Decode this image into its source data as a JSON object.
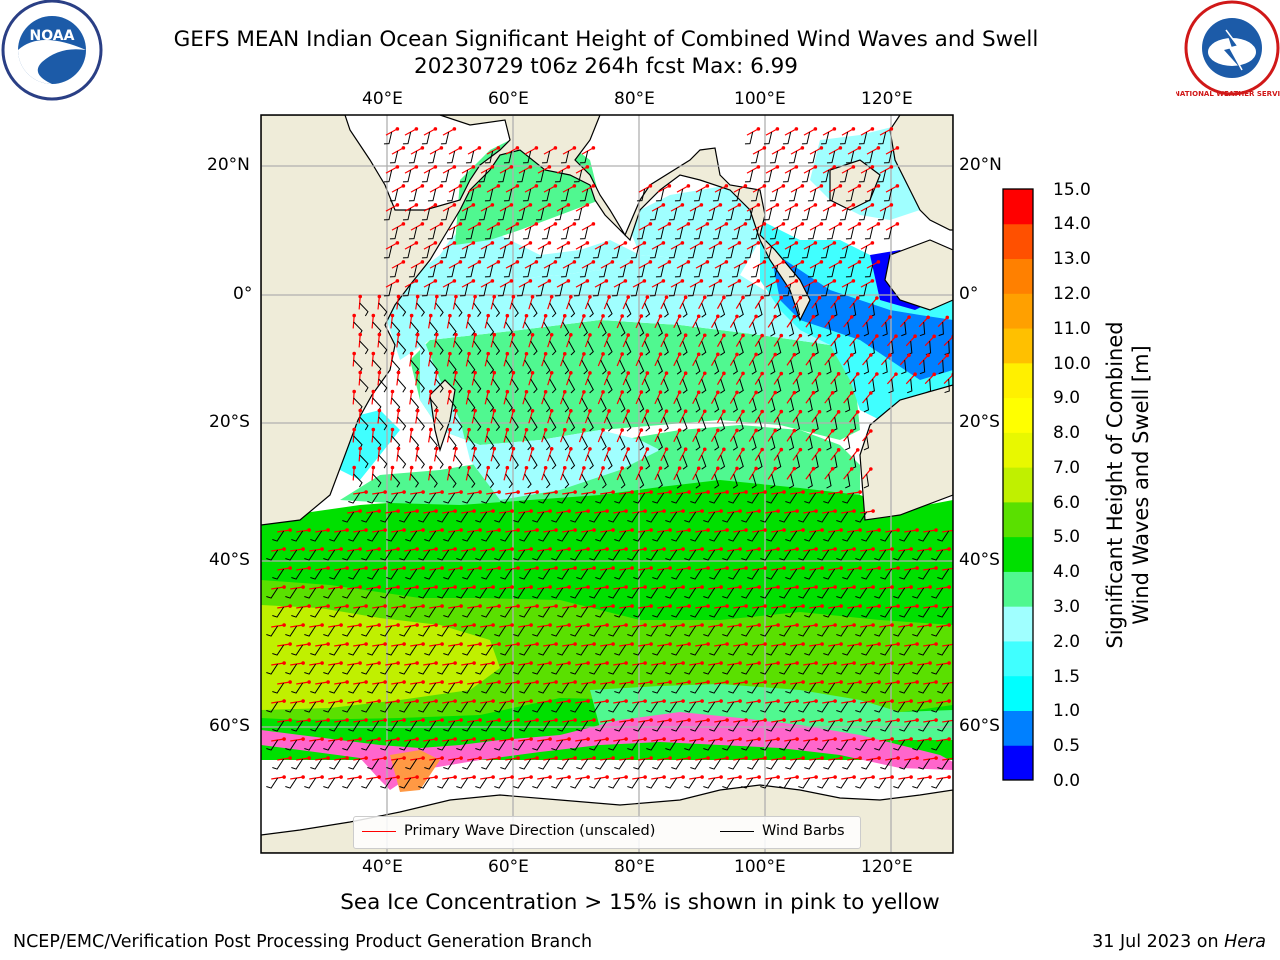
{
  "title_line1": "GEFS MEAN Indian Ocean Significant Height of Combined Wind Waves and Swell",
  "title_line2": "20230729 t06z 264h fcst   Max: 6.99",
  "logos": {
    "noaa": "NOAA",
    "nws": "NATIONAL WEATHER SERVICE"
  },
  "longitude_labels": [
    "40°E",
    "60°E",
    "80°E",
    "100°E",
    "120°E"
  ],
  "latitude_labels": [
    "20°N",
    "0°",
    "20°S",
    "40°S",
    "60°S"
  ],
  "colorbar": {
    "label_line1": "Significant Height of Combined",
    "label_line2": "Wind Waves and Swell [m]",
    "ticks": [
      "15.0",
      "14.0",
      "13.0",
      "12.0",
      "11.0",
      "10.0",
      "9.0",
      "8.0",
      "7.0",
      "6.0",
      "5.0",
      "4.0",
      "3.0",
      "2.0",
      "1.5",
      "1.0",
      "0.5",
      "0.0"
    ],
    "levels": [
      0,
      0.5,
      1.0,
      1.5,
      2.0,
      3.0,
      4.0,
      5.0,
      6.0,
      7.0,
      8.0,
      9.0,
      10.0,
      11.0,
      12.0,
      13.0,
      14.0,
      15.0
    ],
    "colors": [
      "#0000ff",
      "#0080ff",
      "#00ffff",
      "#40ffff",
      "#a0ffff",
      "#50f890",
      "#00e000",
      "#5ae000",
      "#c0f000",
      "#e8f800",
      "#ffff00",
      "#fff000",
      "#ffc000",
      "#ffa000",
      "#ff8000",
      "#ff5000",
      "#ff0000"
    ]
  },
  "colors": {
    "land": "#efecd9",
    "wave_direction": "#ff0000",
    "wind_barb": "#000000",
    "sea_ice": "#ff66cc"
  },
  "legend": {
    "wave_direction_label": "Primary Wave Direction (unscaled)",
    "wind_barbs_label": "Wind Barbs"
  },
  "footnote": "Sea Ice Concentration > 15% is shown in pink to yellow",
  "credit_left": "NCEP/EMC/Verification Post Processing Product Generation Branch",
  "credit_date": "31 Jul 2023 on",
  "credit_machine": "Hera"
}
